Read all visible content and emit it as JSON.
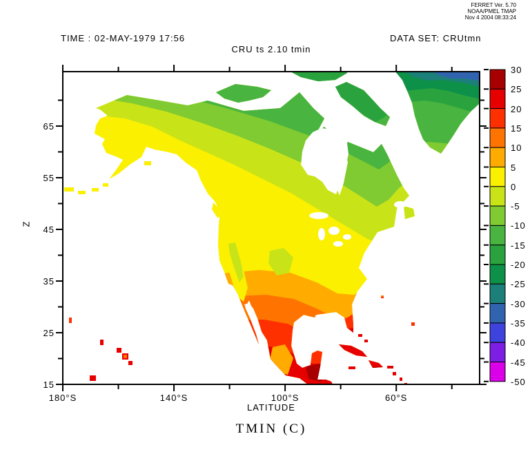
{
  "provenance": {
    "lines": [
      "FERRET Ver. 5.70",
      "NOAA/PMEL TMAP",
      "Nov  4 2004 08:33:24"
    ]
  },
  "header": {
    "time_label": "TIME : 02-MAY-1979 17:56",
    "dataset_label": "DATA SET: CRUtmn"
  },
  "chart_data": {
    "type": "heatmap",
    "title": "CRU ts 2.10 tmin",
    "variable_label": "TMIN (C)",
    "units": "degrees C",
    "xlabel": "LATITUDE",
    "ylabel": "Z",
    "grid": false,
    "x_axis": {
      "range": [
        180,
        30
      ],
      "major_ticks": [
        {
          "value": 180,
          "label": "180°S"
        },
        {
          "value": 140,
          "label": "140°S"
        },
        {
          "value": 100,
          "label": "100°S"
        },
        {
          "value": 60,
          "label": "60°S"
        }
      ],
      "minor_ticks": [
        160,
        120,
        80,
        40
      ]
    },
    "y_axis": {
      "range": [
        15,
        75.5
      ],
      "major_ticks": [
        {
          "value": 65,
          "label": "65"
        },
        {
          "value": 55,
          "label": "55"
        },
        {
          "value": 45,
          "label": "45"
        },
        {
          "value": 35,
          "label": "35"
        },
        {
          "value": 25,
          "label": "25"
        },
        {
          "value": 15,
          "label": "15"
        }
      ],
      "minor_ticks": [
        70,
        60,
        50,
        40,
        30,
        20
      ]
    },
    "colorbar": {
      "position": "right",
      "levels": [
        30,
        25,
        20,
        15,
        10,
        5,
        0,
        -5,
        -10,
        -15,
        -20,
        -25,
        -30,
        -35,
        -40,
        -45,
        -50
      ],
      "colors": [
        "#a80000",
        "#e60000",
        "#ff3000",
        "#ff7400",
        "#ffab00",
        "#fbf000",
        "#c9e319",
        "#7fcb31",
        "#49b43f",
        "#2aa33f",
        "#0d9048",
        "#1d7f79",
        "#3164af",
        "#3e43de",
        "#7e1ee4",
        "#da00e8"
      ]
    },
    "field_summary": [
      {
        "region": "Alaska interior",
        "approx_tmin_c": "0 to 5"
      },
      {
        "region": "Arctic coast and islands",
        "approx_tmin_c": "-5 to -20"
      },
      {
        "region": "Greenland, coldest at northeast corner",
        "approx_tmin_c": "-15 to -35"
      },
      {
        "region": "Central Canada",
        "approx_tmin_c": "-5 to 0"
      },
      {
        "region": "Northern US / Great Lakes",
        "approx_tmin_c": "0 to 5"
      },
      {
        "region": "Central and southern US",
        "approx_tmin_c": "5 to 15"
      },
      {
        "region": "Gulf coast, Florida, south Texas",
        "approx_tmin_c": "15 to 25"
      },
      {
        "region": "Mexico, Yucatan, Caribbean islands",
        "approx_tmin_c": "20 to 30"
      },
      {
        "region": "Hawaiian islands",
        "approx_tmin_c": "20 to 25"
      },
      {
        "region": "Ocean",
        "approx_tmin_c": "no data (white)"
      }
    ]
  }
}
